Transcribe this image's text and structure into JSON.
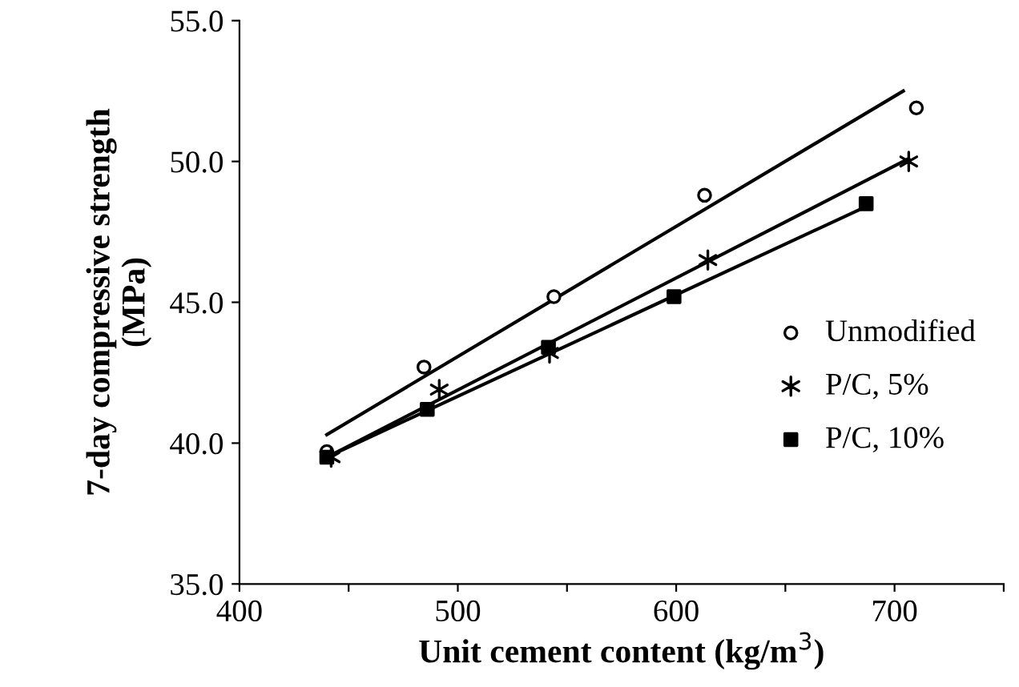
{
  "chart_data": {
    "type": "scatter",
    "xlabel": "Unit cement content (kg/m$^{3}$)",
    "ylabel": "7-day compressive strength\n(MPa)",
    "xlim": [
      400,
      750
    ],
    "xticks": [
      400,
      {
        "value": 450,
        "label": null
      },
      500,
      {
        "value": 550,
        "label": null
      },
      600,
      {
        "value": 650,
        "label": null
      },
      700,
      {
        "value": 750,
        "label": null
      }
    ],
    "ylim": [
      35,
      55
    ],
    "yticks": [
      {
        "value": 35,
        "label": "35.0"
      },
      {
        "value": 40,
        "label": "40.0"
      },
      {
        "value": 45,
        "label": "45.0"
      },
      {
        "value": 50,
        "label": "50.0"
      },
      {
        "value": 55,
        "label": "55.0"
      }
    ],
    "grid": false,
    "legend": "right",
    "series": [
      {
        "name": "Unmodified",
        "marker": "circle",
        "color": "#000000",
        "x": [
          440,
          484.5,
          544,
          613,
          710
        ],
        "values": [
          39.7,
          42.7,
          45.2,
          48.8,
          51.9
        ]
      },
      {
        "name": "P/C, 5%",
        "marker": "cross",
        "color": "#000000",
        "x": [
          442,
          491.5,
          542,
          614.5,
          706.5
        ],
        "values": [
          39.5,
          41.9,
          43.2,
          46.5,
          50.0
        ]
      },
      {
        "name": "P/C, 10%",
        "marker": "square",
        "color": "#000000",
        "x": [
          440,
          486,
          541.5,
          599,
          687
        ],
        "values": [
          39.5,
          41.2,
          43.4,
          45.2,
          48.5
        ]
      },
      {
        "type": "line",
        "marker": "none",
        "line_style": "solid",
        "color": "#000000",
        "x": [
          440,
          704
        ],
        "values": [
          40.3,
          52.5
        ]
      },
      {
        "type": "line",
        "marker": "none",
        "line_style": "solid",
        "color": "#000000",
        "x": [
          440,
          706.5
        ],
        "values": [
          39.5,
          50.1
        ]
      },
      {
        "type": "line",
        "marker": "none",
        "line_style": "solid",
        "color": "#000000",
        "x": [
          440,
          687
        ],
        "values": [
          39.5,
          48.4
        ]
      }
    ]
  }
}
